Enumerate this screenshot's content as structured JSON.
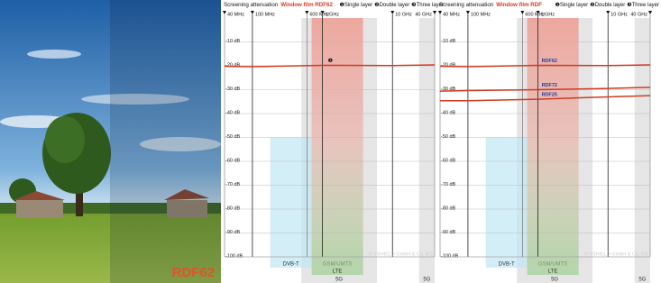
{
  "photo_label": "RDF62",
  "chart_data": [
    {
      "type": "line",
      "title": "Screening attenuation",
      "title_highlight": "Window film RDF62",
      "legend_items": [
        "❶Single layer",
        "❷Double layer",
        "❸Three layer"
      ],
      "log_x": true,
      "xlim": [
        40,
        40000
      ],
      "ylim": [
        -100,
        0
      ],
      "grid": true,
      "xticks": [
        {
          "value": 40,
          "label": "40 MHz"
        },
        {
          "value": 100,
          "label": "100 MHz"
        },
        {
          "value": 600,
          "label": "600 MHz"
        },
        {
          "value": 1000,
          "label": "1 GHz"
        },
        {
          "value": 10000,
          "label": "10 GHz"
        },
        {
          "value": 40000,
          "label": "40 GHz"
        }
      ],
      "yticks": [
        {
          "value": -10,
          "label": "-10 dB"
        },
        {
          "value": -20,
          "label": "-20 dB"
        },
        {
          "value": -30,
          "label": "-30 dB"
        },
        {
          "value": -40,
          "label": "-40 dB"
        },
        {
          "value": -50,
          "label": "-50 dB"
        },
        {
          "value": -60,
          "label": "-60 dB"
        },
        {
          "value": -70,
          "label": "-70 dB"
        },
        {
          "value": -80,
          "label": "-80 dB"
        },
        {
          "value": -90,
          "label": "-90 dB"
        },
        {
          "value": -100,
          "label": "-100 dB"
        }
      ],
      "bands": [
        {
          "label": "DVB-T",
          "range": [
            180,
            700
          ],
          "color": "#bfe6f5"
        },
        {
          "label": "GSM/UMTS",
          "range": [
            700,
            3800
          ],
          "color": "#f08a7c"
        },
        {
          "label": "LTE",
          "range": [
            700,
            3800
          ],
          "color": "#9ccf8e"
        },
        {
          "label": "5G",
          "range": [
            500,
            6000
          ],
          "color": "#d9d9d9"
        },
        {
          "label": "5G",
          "range": [
            24000,
            40000
          ],
          "color": "#d9d9d9"
        }
      ],
      "x": [
        40,
        100,
        1000,
        10000,
        40000
      ],
      "series": [
        {
          "color": "#d23a22",
          "values": [
            -20.2,
            -20.4,
            -19.8,
            -19.9,
            -19.6
          ],
          "annotation": "❶"
        }
      ],
      "watermark": "© YSHIELD GmbH & Co. KG"
    },
    {
      "type": "line",
      "title": "Screening attenuation",
      "title_highlight": "Window film RDF",
      "legend_items": [
        "❶Single layer",
        "❷Double layer",
        "❸Three layer"
      ],
      "log_x": true,
      "xlim": [
        40,
        40000
      ],
      "ylim": [
        -100,
        0
      ],
      "grid": true,
      "xticks": [
        {
          "value": 40,
          "label": "40 MHz"
        },
        {
          "value": 100,
          "label": "100 MHz"
        },
        {
          "value": 600,
          "label": "600 MHz"
        },
        {
          "value": 1000,
          "label": "1 GHz"
        },
        {
          "value": 10000,
          "label": "10 GHz"
        },
        {
          "value": 40000,
          "label": "40 GHz"
        }
      ],
      "yticks": [
        {
          "value": -10,
          "label": "-10 dB"
        },
        {
          "value": -20,
          "label": "-20 dB"
        },
        {
          "value": -30,
          "label": "-30 dB"
        },
        {
          "value": -40,
          "label": "-40 dB"
        },
        {
          "value": -50,
          "label": "-50 dB"
        },
        {
          "value": -60,
          "label": "-60 dB"
        },
        {
          "value": -70,
          "label": "-70 dB"
        },
        {
          "value": -80,
          "label": "-80 dB"
        },
        {
          "value": -90,
          "label": "-90 dB"
        },
        {
          "value": -100,
          "label": "-100 dB"
        }
      ],
      "bands": [
        {
          "label": "DVB-T",
          "range": [
            180,
            700
          ],
          "color": "#bfe6f5"
        },
        {
          "label": "GSM/UMTS",
          "range": [
            700,
            3800
          ],
          "color": "#f08a7c"
        },
        {
          "label": "LTE",
          "range": [
            700,
            3800
          ],
          "color": "#9ccf8e"
        },
        {
          "label": "5G",
          "range": [
            500,
            6000
          ],
          "color": "#d9d9d9"
        },
        {
          "label": "5G",
          "range": [
            24000,
            40000
          ],
          "color": "#d9d9d9"
        }
      ],
      "x": [
        40,
        100,
        1000,
        10000,
        40000
      ],
      "series": [
        {
          "name": "RDF62",
          "color": "#d23a22",
          "values": [
            -20.2,
            -20.4,
            -19.8,
            -19.9,
            -19.6
          ]
        },
        {
          "name": "RDF72",
          "color": "#d23a22",
          "values": [
            -30.6,
            -30.4,
            -30,
            -29.5,
            -29
          ]
        },
        {
          "name": "RDF25",
          "color": "#d23a22",
          "values": [
            -34.6,
            -34.6,
            -34,
            -33,
            -32.5
          ]
        }
      ],
      "watermark": "© YSHIELD GmbH & Co. KG"
    }
  ]
}
